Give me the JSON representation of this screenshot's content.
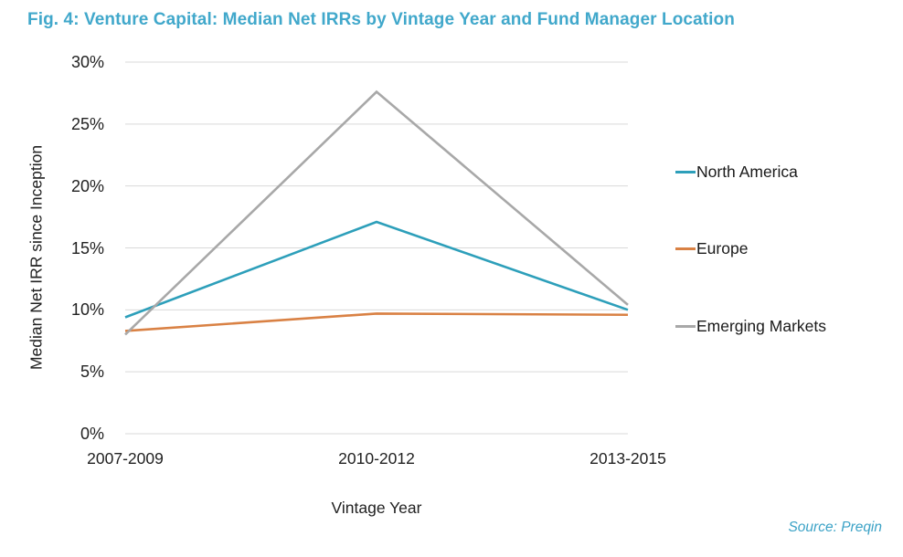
{
  "header": {
    "title": "Fig. 4: Venture Capital: Median Net IRRs by Vintage Year and Fund Manager Location",
    "title_color": "#41a8cb"
  },
  "chart_data": {
    "type": "line",
    "title": "Fig. 4: Venture Capital: Median Net IRRs by Vintage Year and Fund Manager Location",
    "categories": [
      "2007-2009",
      "2010-2012",
      "2013-2015"
    ],
    "series": [
      {
        "name": "North America",
        "color": "#2d9fba",
        "values": [
          9.4,
          17.1,
          10.0
        ]
      },
      {
        "name": "Europe",
        "color": "#d98144",
        "values": [
          8.3,
          9.7,
          9.6
        ]
      },
      {
        "name": "Emerging Markets",
        "color": "#a8a8a8",
        "values": [
          8.0,
          27.6,
          10.4
        ]
      }
    ],
    "xlabel": "Vintage Year",
    "ylabel": "Median Net IRR since Inception",
    "ylim": [
      0,
      30
    ],
    "yticks": [
      {
        "value": 0,
        "label": "0%"
      },
      {
        "value": 5,
        "label": "5%"
      },
      {
        "value": 10,
        "label": "10%"
      },
      {
        "value": 15,
        "label": "15%"
      },
      {
        "value": 20,
        "label": "20%"
      },
      {
        "value": 25,
        "label": "25%"
      },
      {
        "value": 30,
        "label": "30%"
      }
    ],
    "grid": "horizontal",
    "gridline_color": "#d9d9d9",
    "legend_position": "right"
  },
  "footer": {
    "source": "Source: Preqin",
    "color": "#3ba2c6"
  }
}
